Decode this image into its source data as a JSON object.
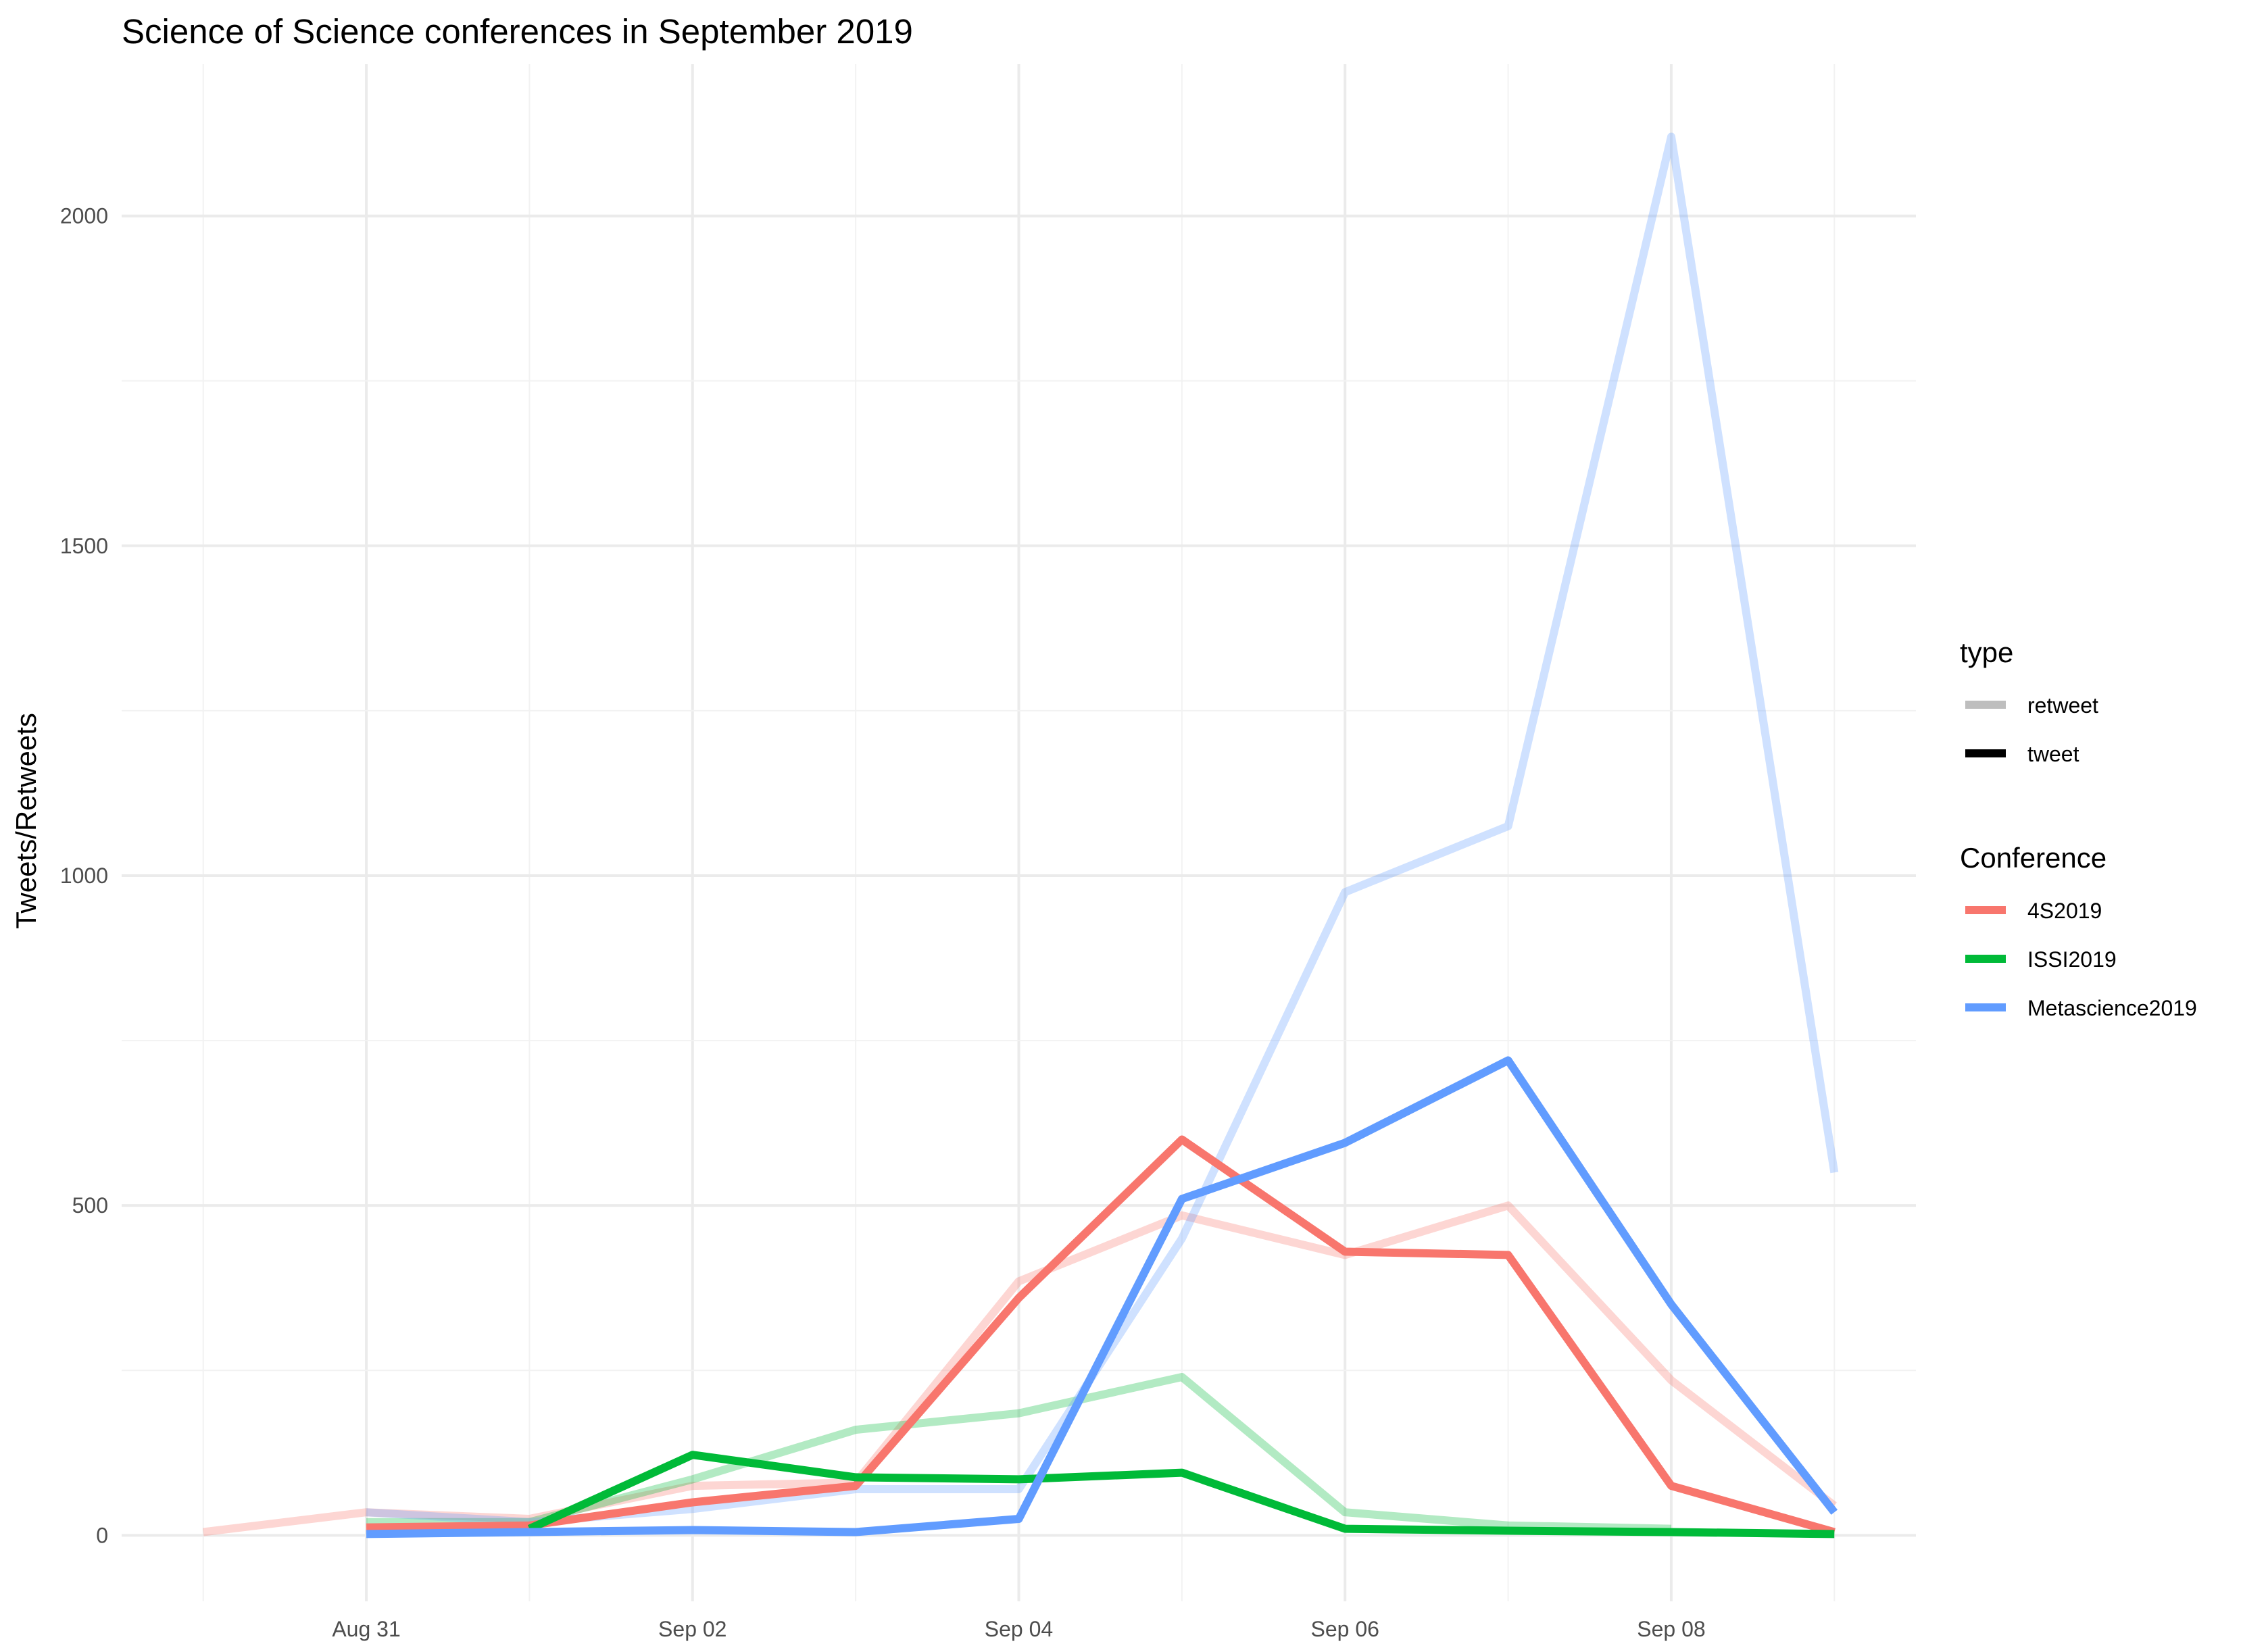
{
  "chart_data": {
    "type": "line",
    "title": "Science of Science conferences in September 2019",
    "xlabel": "",
    "ylabel": "Tweets/Retweets",
    "x": [
      "2019-08-30",
      "2019-08-31",
      "2019-09-01",
      "2019-09-02",
      "2019-09-03",
      "2019-09-04",
      "2019-09-05",
      "2019-09-06",
      "2019-09-07",
      "2019-09-08",
      "2019-09-09"
    ],
    "x_tick_labels": [
      {
        "date": "2019-08-31",
        "label": "Aug 31"
      },
      {
        "date": "2019-09-02",
        "label": "Sep 02"
      },
      {
        "date": "2019-09-04",
        "label": "Sep 04"
      },
      {
        "date": "2019-09-06",
        "label": "Sep 06"
      },
      {
        "date": "2019-09-08",
        "label": "Sep 08"
      }
    ],
    "y_ticks": [
      0,
      500,
      1000,
      1500,
      2000
    ],
    "y_tick_labels": [
      "0",
      "500",
      "1000",
      "1500",
      "2000"
    ],
    "ylim": [
      -100,
      2230
    ],
    "grid": true,
    "legend_position": "right",
    "legends": [
      {
        "title": "type",
        "entries": [
          {
            "label": "retweet",
            "color": "#bebebe"
          },
          {
            "label": "tweet",
            "color": "#000000"
          }
        ]
      },
      {
        "title": "Conference",
        "entries": [
          {
            "label": "4S2019",
            "color": "#F8766D"
          },
          {
            "label": "ISSI2019",
            "color": "#00BA38"
          },
          {
            "label": "Metascience2019",
            "color": "#619CFF"
          }
        ]
      }
    ],
    "series": [
      {
        "name": "4S2019",
        "type": "retweet",
        "color": "#F8766D",
        "x": [
          "2019-08-30",
          "2019-08-31",
          "2019-09-01",
          "2019-09-02",
          "2019-09-03",
          "2019-09-04",
          "2019-09-05",
          "2019-09-06",
          "2019-09-07",
          "2019-09-08",
          "2019-09-09"
        ],
        "values": [
          5,
          35,
          25,
          75,
          80,
          385,
          485,
          425,
          500,
          235,
          45
        ]
      },
      {
        "name": "ISSI2019",
        "type": "retweet",
        "color": "#00BA38",
        "x": [
          "2019-08-31",
          "2019-09-01",
          "2019-09-02",
          "2019-09-03",
          "2019-09-04",
          "2019-09-05",
          "2019-09-06",
          "2019-09-07",
          "2019-09-08"
        ],
        "values": [
          20,
          20,
          85,
          160,
          185,
          240,
          35,
          15,
          10
        ]
      },
      {
        "name": "Metascience2019",
        "type": "retweet",
        "color": "#619CFF",
        "x": [
          "2019-08-31",
          "2019-09-01",
          "2019-09-02",
          "2019-09-03",
          "2019-09-04",
          "2019-09-05",
          "2019-09-06",
          "2019-09-07",
          "2019-09-08",
          "2019-09-09"
        ],
        "values": [
          35,
          20,
          40,
          70,
          70,
          450,
          975,
          1075,
          2120,
          550
        ]
      },
      {
        "name": "4S2019",
        "type": "tweet",
        "color": "#F8766D",
        "x": [
          "2019-08-31",
          "2019-09-01",
          "2019-09-02",
          "2019-09-03",
          "2019-09-04",
          "2019-09-05",
          "2019-09-06",
          "2019-09-07",
          "2019-09-08",
          "2019-09-09"
        ],
        "values": [
          12,
          15,
          50,
          75,
          360,
          600,
          430,
          425,
          75,
          5
        ]
      },
      {
        "name": "ISSI2019",
        "type": "tweet",
        "color": "#00BA38",
        "x": [
          "2019-09-01",
          "2019-09-02",
          "2019-09-03",
          "2019-09-04",
          "2019-09-05",
          "2019-09-06",
          "2019-09-07",
          "2019-09-08",
          "2019-09-09"
        ],
        "values": [
          10,
          122,
          88,
          85,
          95,
          10,
          7,
          5,
          2
        ]
      },
      {
        "name": "Metascience2019",
        "type": "tweet",
        "color": "#619CFF",
        "x": [
          "2019-08-31",
          "2019-09-01",
          "2019-09-02",
          "2019-09-03",
          "2019-09-04",
          "2019-09-05",
          "2019-09-06",
          "2019-09-07",
          "2019-09-08",
          "2019-09-09"
        ],
        "values": [
          2,
          5,
          8,
          5,
          25,
          510,
          595,
          720,
          350,
          35
        ]
      }
    ]
  }
}
